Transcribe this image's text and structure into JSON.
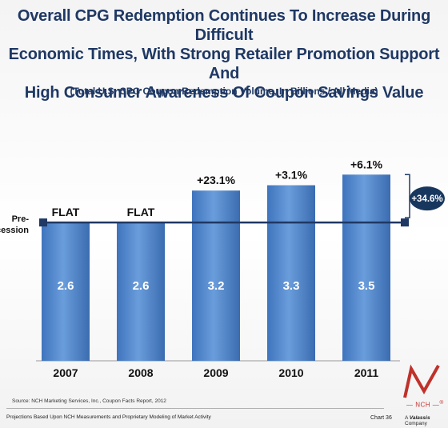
{
  "title": {
    "line1": "Overall CPG Redemption Continues To Increase During Difficult",
    "line2": "Economic Times, With Strong Retailer Promotion Support And",
    "line3": "High Consumer Awareness Of Coupon Savings Value"
  },
  "subtitle": "(Total U.S. CPG Coupon Redemption Volume, In Billions  / All Media)",
  "chart_data": {
    "type": "bar",
    "categories": [
      "2007",
      "2008",
      "2009",
      "2010",
      "2011"
    ],
    "values": [
      2.6,
      2.6,
      3.2,
      3.3,
      3.5
    ],
    "value_labels": [
      "2.6",
      "2.6",
      "3.2",
      "3.3",
      "3.5"
    ],
    "change_labels": [
      "FLAT",
      "FLAT",
      "+23.1%",
      "+3.1%",
      "+6.1%"
    ],
    "reference_line": {
      "label": "Pre-Recession",
      "label_line1": "Pre-",
      "label_line2": "Recession",
      "value": 2.6
    },
    "bracket_label": "+34.6%",
    "colors": {
      "bar": "#5b8fd0",
      "bar_dark": "#3a6eb3",
      "line": "#1f3864",
      "badge": "#17375e"
    },
    "grid": false,
    "legend": "none"
  },
  "footer": {
    "source": "Source: NCH Marketing Services, Inc., Coupon Facts Report, 2012",
    "note": "Projections Based Upon NCH  Measurements and Proprietary Modeling  of Market Activity",
    "chart_number": "Chart 36",
    "company_prefix": "A",
    "company_brand": "Valassis",
    "company_suffix": "Company",
    "logo_text": "NCH",
    "logo_reg": "®"
  }
}
